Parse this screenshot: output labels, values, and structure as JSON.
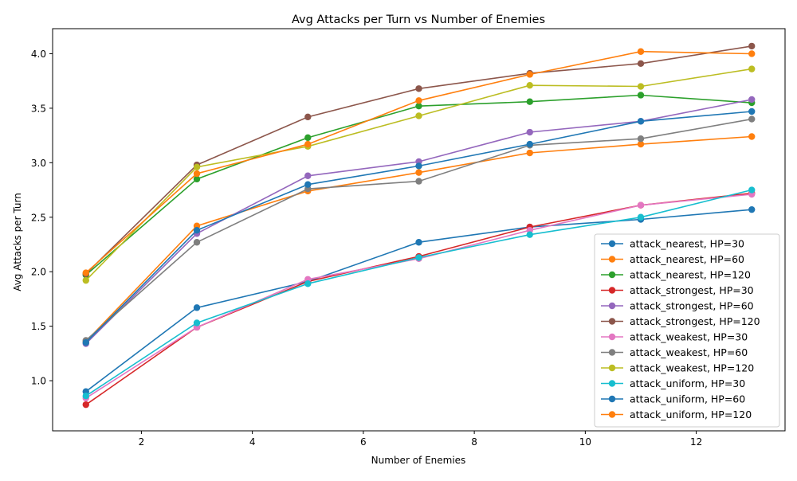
{
  "chart_data": {
    "type": "line",
    "title": "Avg Attacks per Turn vs Number of Enemies",
    "xlabel": "Number of Enemies",
    "ylabel": "Avg Attacks per Turn",
    "xlim": [
      0.4,
      13.6
    ],
    "ylim": [
      0.54,
      4.23
    ],
    "xticks": [
      2,
      4,
      6,
      8,
      10,
      12
    ],
    "yticks": [
      1.0,
      1.5,
      2.0,
      2.5,
      3.0,
      3.5,
      4.0
    ],
    "grid": false,
    "legend_position": "lower-right",
    "x": [
      1,
      3,
      5,
      7,
      9,
      11,
      13
    ],
    "series": [
      {
        "name": "attack_nearest, HP=30",
        "color": "#1f77b4",
        "values": [
          0.9,
          1.67,
          1.91,
          2.27,
          2.41,
          2.48,
          2.57
        ]
      },
      {
        "name": "attack_nearest, HP=60",
        "color": "#ff7f0e",
        "values": [
          1.36,
          2.42,
          2.74,
          2.91,
          3.09,
          3.17,
          3.24
        ]
      },
      {
        "name": "attack_nearest, HP=120",
        "color": "#2ca02c",
        "values": [
          1.97,
          2.85,
          3.23,
          3.52,
          3.56,
          3.62,
          3.55
        ]
      },
      {
        "name": "attack_strongest, HP=30",
        "color": "#d62728",
        "values": [
          0.78,
          1.49,
          1.91,
          2.14,
          2.41,
          2.61,
          2.72
        ]
      },
      {
        "name": "attack_strongest, HP=60",
        "color": "#9467bd",
        "values": [
          1.34,
          2.35,
          2.88,
          3.01,
          3.28,
          3.38,
          3.58
        ]
      },
      {
        "name": "attack_strongest, HP=120",
        "color": "#8c564b",
        "values": [
          1.98,
          2.98,
          3.42,
          3.68,
          3.82,
          3.91,
          4.07
        ]
      },
      {
        "name": "attack_weakest, HP=30",
        "color": "#e377c2",
        "values": [
          0.84,
          1.49,
          1.93,
          2.12,
          2.38,
          2.61,
          2.71
        ]
      },
      {
        "name": "attack_weakest, HP=60",
        "color": "#7f7f7f",
        "values": [
          1.37,
          2.27,
          2.76,
          2.83,
          3.16,
          3.22,
          3.4
        ]
      },
      {
        "name": "attack_weakest, HP=120",
        "color": "#bcbd22",
        "values": [
          1.92,
          2.96,
          3.15,
          3.43,
          3.71,
          3.7,
          3.86
        ]
      },
      {
        "name": "attack_uniform, HP=30",
        "color": "#17becf",
        "values": [
          0.86,
          1.53,
          1.89,
          2.13,
          2.34,
          2.5,
          2.75
        ]
      },
      {
        "name": "attack_uniform, HP=60",
        "color": "#1f77b4",
        "values": [
          1.35,
          2.38,
          2.8,
          2.97,
          3.17,
          3.38,
          3.47
        ]
      },
      {
        "name": "attack_uniform, HP=120",
        "color": "#ff7f0e",
        "values": [
          1.99,
          2.9,
          3.17,
          3.57,
          3.81,
          4.02,
          4.0
        ]
      }
    ]
  }
}
